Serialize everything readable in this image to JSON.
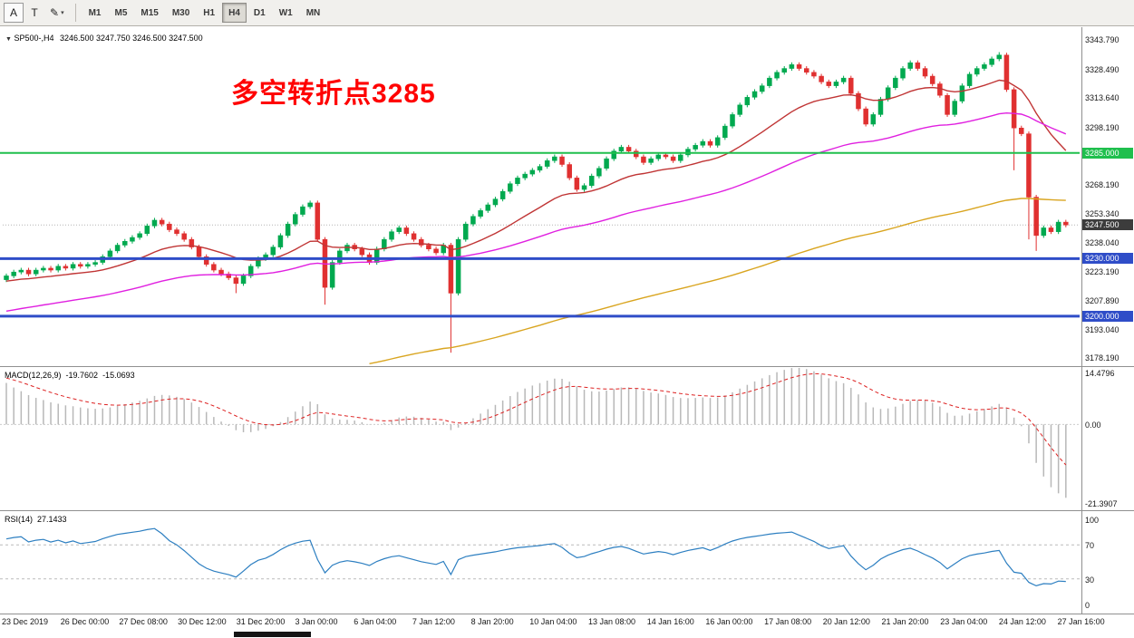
{
  "toolbar": {
    "tools": [
      {
        "id": "cursor",
        "label": "A"
      },
      {
        "id": "text",
        "label": "T"
      },
      {
        "id": "draw",
        "label": "✎",
        "dropdown": "▾"
      }
    ],
    "timeframes": [
      {
        "label": "M1",
        "active": false
      },
      {
        "label": "M5",
        "active": false
      },
      {
        "label": "M15",
        "active": false
      },
      {
        "label": "M30",
        "active": false
      },
      {
        "label": "H1",
        "active": false
      },
      {
        "label": "H4",
        "active": true
      },
      {
        "label": "D1",
        "active": false
      },
      {
        "label": "W1",
        "active": false
      },
      {
        "label": "MN",
        "active": false
      }
    ]
  },
  "chart": {
    "collapse_icon": "▼",
    "header_symbol": "SP500-,H4",
    "header_ohlc": "3246.500 3247.750 3246.500 3247.500",
    "annotation": "多空转折点3285",
    "y_axis_labels": [
      "3343.790",
      "3328.490",
      "3313.640",
      "3298.190",
      "3268.190",
      "3253.340",
      "3238.040",
      "3223.190",
      "3207.890",
      "3193.040",
      "3178.190"
    ],
    "y_axis_prices": [
      3343.79,
      3328.49,
      3313.64,
      3298.19,
      3268.19,
      3253.34,
      3238.04,
      3223.19,
      3207.89,
      3193.04,
      3178.19
    ],
    "x_axis_labels": [
      "23 Dec 2019",
      "26 Dec 00:00",
      "27 Dec 08:00",
      "30 Dec 12:00",
      "31 Dec 20:00",
      "3 Jan 00:00",
      "6 Jan 04:00",
      "7 Jan 12:00",
      "8 Jan 20:00",
      "10 Jan 04:00",
      "13 Jan 08:00",
      "14 Jan 16:00",
      "16 Jan 00:00",
      "17 Jan 08:00",
      "20 Jan 12:00",
      "21 Jan 20:00",
      "23 Jan 04:00",
      "24 Jan 12:00",
      "27 Jan 16:00"
    ],
    "levels": [
      {
        "price": 3285.0,
        "label": "3285.000",
        "color": "#1fbf4d",
        "thickness": 2
      },
      {
        "price": 3230.0,
        "label": "3230.000",
        "color": "#2f4dc8",
        "thickness": 3
      },
      {
        "price": 3200.0,
        "label": "3200.000",
        "color": "#2f4dc8",
        "thickness": 3
      }
    ],
    "current_price": {
      "price": 3247.5,
      "label": "3247.500"
    }
  },
  "macd_panel": {
    "name": "MACD(12,26,9)",
    "main": "-19.7602",
    "signal": "-15.0693",
    "axis": [
      {
        "label": "14.4796",
        "value": 14.4796
      },
      {
        "label": "0.00",
        "value": 0
      },
      {
        "label": "-21.3907",
        "value": -21.3907
      }
    ]
  },
  "rsi_panel": {
    "name": "RSI(14)",
    "value": "27.1433",
    "levels": [
      70,
      30
    ],
    "axis": [
      {
        "label": "100",
        "value": 100
      },
      {
        "label": "70",
        "value": 70
      },
      {
        "label": "30",
        "value": 30
      },
      {
        "label": "0",
        "value": 0
      }
    ]
  },
  "colors": {
    "candle_up": "#00a94f",
    "candle_down": "#e03030",
    "macd_hist": "#b8b8b8",
    "macd_signal": "#dd2222",
    "rsi_line": "#2d7fc1",
    "current_price_badge": "#3c3c3c",
    "annotation": "#ff0000"
  },
  "chart_data": {
    "type": "candlestick",
    "symbol": "SP500-",
    "timeframe": "H4",
    "price_scale": {
      "min": 3174.0,
      "max": 3350.5
    },
    "first_open": 3219,
    "default_wick": 1.2,
    "closes": [
      3221,
      3223,
      3224,
      3222,
      3224,
      3225,
      3224,
      3226,
      3225,
      3227,
      3226,
      3227,
      3228,
      3231,
      3234,
      3237,
      3239,
      3241,
      3243,
      3247,
      3250,
      3248,
      3245,
      3243,
      3240,
      3236,
      3231,
      3227,
      3224,
      3222,
      3220,
      3217,
      3221,
      3226,
      3230,
      3232,
      3236,
      3242,
      3248,
      3253,
      3257,
      3259,
      3240,
      3215,
      3228,
      3234,
      3237,
      3235,
      3232,
      3228,
      3235,
      3240,
      3244,
      3246,
      3243,
      3240,
      3237,
      3235,
      3233,
      3237,
      3212,
      3240,
      3248,
      3252,
      3255,
      3258,
      3261,
      3265,
      3269,
      3272,
      3274,
      3276,
      3278,
      3281,
      3283,
      3279,
      3272,
      3266,
      3268,
      3273,
      3277,
      3282,
      3286,
      3288,
      3286,
      3283,
      3280,
      3282,
      3284,
      3283,
      3281,
      3284,
      3287,
      3289,
      3291,
      3289,
      3293,
      3299,
      3305,
      3310,
      3314,
      3317,
      3320,
      3324,
      3327,
      3329,
      3331,
      3329,
      3327,
      3325,
      3322,
      3320,
      3322,
      3324,
      3316,
      3308,
      3300,
      3305,
      3313,
      3319,
      3324,
      3329,
      3332,
      3329,
      3325,
      3321,
      3315,
      3305,
      3312,
      3320,
      3326,
      3329,
      3331,
      3334,
      3336,
      3318,
      3298,
      3295,
      3262,
      3242,
      3246,
      3244,
      3249,
      3247.5
    ],
    "wick_overrides": {
      "31": {
        "low": 3212
      },
      "43": {
        "low": 3206
      },
      "60": {
        "low": 3181
      },
      "134": {
        "high": 3337.5
      },
      "136": {
        "low": 3276
      },
      "138": {
        "low": 3240
      },
      "139": {
        "low": 3234
      }
    },
    "moving_averages": [
      {
        "period": 20,
        "color": "#c03535",
        "seed": 3218
      },
      {
        "period": 60,
        "color": "#e020e0",
        "seed": 3202
      },
      {
        "period": 150,
        "color": "#d9a520",
        "seed": 3120
      }
    ],
    "macd": {
      "fast": 12,
      "slow": 26,
      "signal": 9,
      "seed_fast": 3229,
      "seed_slow": 3217,
      "seed_signal": 12,
      "scale": {
        "min": -21.3907,
        "max": 14.4796
      }
    },
    "rsi": {
      "period": 14,
      "seed_gain": 1.5,
      "seed_loss": 0.45,
      "scale": {
        "min": 0,
        "max": 100
      }
    }
  }
}
